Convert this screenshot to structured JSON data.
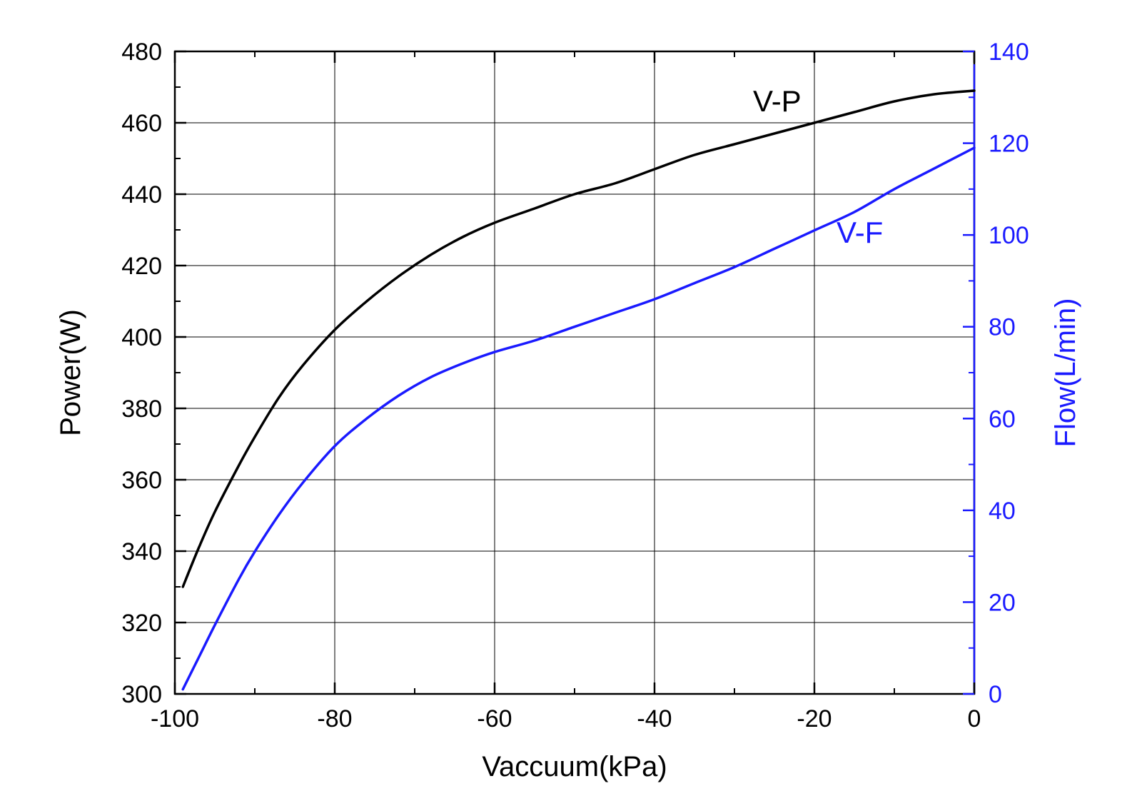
{
  "chart_data": {
    "type": "line",
    "title": "",
    "xlabel": "Vaccuum(kPa)",
    "ylabel": "Power(W)",
    "y2label": "Flow(L/min)",
    "xlim": [
      -100,
      0
    ],
    "ylim": [
      300,
      480
    ],
    "y2lim": [
      0,
      140
    ],
    "xticks": [
      -100,
      -80,
      -60,
      -40,
      -20,
      0
    ],
    "yticks": [
      300,
      320,
      340,
      360,
      380,
      400,
      420,
      440,
      460,
      480
    ],
    "y2ticks": [
      0,
      20,
      40,
      60,
      80,
      100,
      120,
      140
    ],
    "grid": true,
    "legend": "none",
    "axis_color": "#000000",
    "axis2_color": "#1a1aff",
    "series": [
      {
        "label": "V-P",
        "axis": "left",
        "color": "#000000",
        "x": [
          -99,
          -97,
          -95,
          -92,
          -90,
          -87,
          -84,
          -80,
          -76,
          -72,
          -68,
          -64,
          -60,
          -55,
          -50,
          -45,
          -40,
          -35,
          -30,
          -25,
          -20,
          -15,
          -10,
          -5,
          0
        ],
        "y": [
          330,
          341,
          351,
          364,
          372,
          383,
          392,
          402,
          410,
          417,
          423,
          428,
          432,
          436,
          440,
          443,
          447,
          451,
          454,
          457,
          460,
          463,
          466,
          468,
          469
        ]
      },
      {
        "label": "V-F",
        "axis": "right",
        "color": "#1a1aff",
        "x": [
          -99,
          -97,
          -95,
          -92,
          -90,
          -87,
          -84,
          -80,
          -76,
          -72,
          -68,
          -64,
          -60,
          -55,
          -50,
          -45,
          -40,
          -35,
          -30,
          -25,
          -20,
          -15,
          -10,
          -5,
          0
        ],
        "y": [
          1,
          8,
          15,
          25,
          31,
          39,
          46,
          54,
          60,
          65,
          69,
          72,
          74.5,
          77,
          80,
          83,
          86,
          89.5,
          93,
          97,
          101,
          105,
          110,
          114.5,
          119
        ]
      }
    ]
  }
}
